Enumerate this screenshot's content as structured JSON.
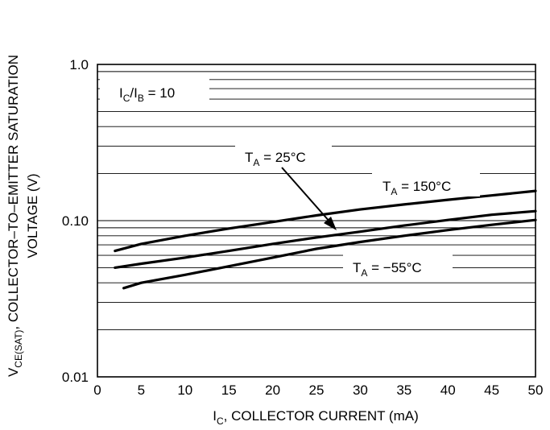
{
  "chart_data": {
    "type": "line",
    "xscale": "linear",
    "yscale": "log",
    "xlim": [
      0,
      50
    ],
    "ylim": [
      0.01,
      1.0
    ],
    "grid": true,
    "xticks": [
      "0",
      "5",
      "10",
      "15",
      "20",
      "25",
      "30",
      "35",
      "40",
      "45",
      "50"
    ],
    "yticks": [
      {
        "value": 1.0,
        "label": "1.0"
      },
      {
        "value": 0.1,
        "label": "0.10"
      },
      {
        "value": 0.01,
        "label": "0.01"
      }
    ],
    "xlabel": {
      "main": "I",
      "sub": "C",
      "rest": ", COLLECTOR CURRENT (mA)"
    },
    "ylabel": {
      "line1_main": "V",
      "line1_sub": "CE(SAT)",
      "line1_rest": ", COLLECTOR–TO–EMITTER SATURATION",
      "line2": "VOLTAGE (V)"
    },
    "condition": {
      "p1": "I",
      "s1": "C",
      "p2": "/I",
      "s2": "B",
      "p3": " = 10"
    },
    "series": [
      {
        "name": "T_A = 150°C",
        "label_main": "T",
        "label_sub": "A",
        "label_rest": " = 150°C",
        "x": [
          2,
          5,
          10,
          15,
          20,
          25,
          30,
          35,
          40,
          45,
          50
        ],
        "y": [
          0.064,
          0.071,
          0.08,
          0.089,
          0.098,
          0.108,
          0.118,
          0.127,
          0.136,
          0.145,
          0.155
        ]
      },
      {
        "name": "T_A = 25°C",
        "label_main": "T",
        "label_sub": "A",
        "label_rest": " = 25°C",
        "x": [
          2,
          5,
          10,
          15,
          20,
          25,
          30,
          35,
          40,
          45,
          50
        ],
        "y": [
          0.05,
          0.053,
          0.058,
          0.064,
          0.071,
          0.078,
          0.085,
          0.093,
          0.101,
          0.109,
          0.115
        ]
      },
      {
        "name": "T_A = −55°C",
        "label_main": "T",
        "label_sub": "A",
        "label_rest": " = −55°C",
        "x": [
          3,
          5,
          10,
          15,
          20,
          25,
          30,
          35,
          40,
          45,
          50
        ],
        "y": [
          0.037,
          0.04,
          0.045,
          0.051,
          0.058,
          0.066,
          0.073,
          0.08,
          0.087,
          0.094,
          0.101
        ]
      }
    ]
  }
}
